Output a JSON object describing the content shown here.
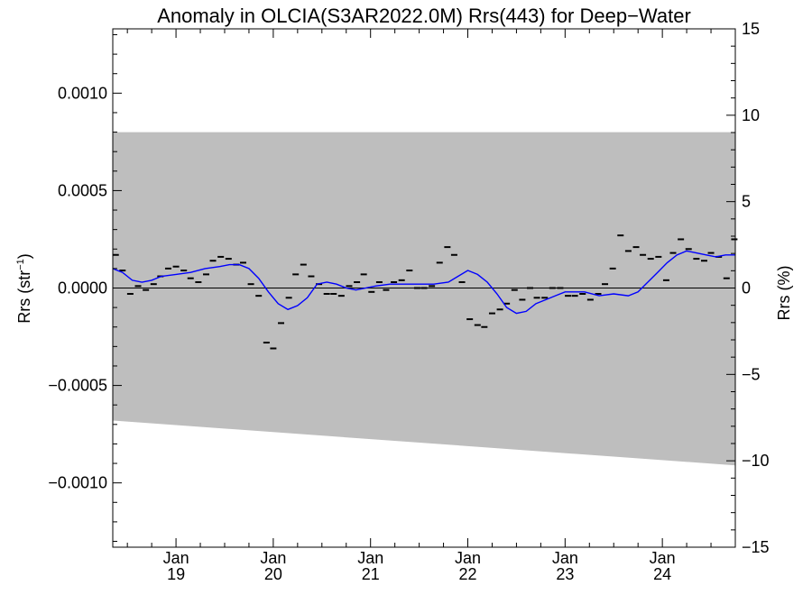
{
  "chart_data": {
    "type": "scatter",
    "title": "Anomaly in OLCIA(S3AR2022.0M) Rrs(443) for Deep−Water",
    "ylabel_left": "Rrs (str",
    "ylabel_left_sup": "−1",
    "ylabel_left_end": ")",
    "ylabel_right": "Rrs (%)",
    "xlim": [
      2018.35,
      2024.75
    ],
    "ylim_left": [
      -0.00133,
      0.00133
    ],
    "ylim_right": [
      -15,
      15
    ],
    "x_ticks": [
      {
        "x": 2019.0,
        "month": "Jan",
        "year": "19"
      },
      {
        "x": 2020.0,
        "month": "Jan",
        "year": "20"
      },
      {
        "x": 2021.0,
        "month": "Jan",
        "year": "21"
      },
      {
        "x": 2022.0,
        "month": "Jan",
        "year": "22"
      },
      {
        "x": 2023.0,
        "month": "Jan",
        "year": "23"
      },
      {
        "x": 2024.0,
        "month": "Jan",
        "year": "24"
      }
    ],
    "y_ticks_left": [
      {
        "v": 0.001,
        "label": "0.0010"
      },
      {
        "v": 0.0005,
        "label": "0.0005"
      },
      {
        "v": 0.0,
        "label": "0.0000"
      },
      {
        "v": -0.0005,
        "label": "−0.0005"
      },
      {
        "v": -0.001,
        "label": "−0.0010"
      }
    ],
    "y_ticks_right": [
      {
        "v": 15,
        "label": "15"
      },
      {
        "v": 10,
        "label": "10"
      },
      {
        "v": 5,
        "label": "5"
      },
      {
        "v": 0,
        "label": "0"
      },
      {
        "v": -5,
        "label": "−5"
      },
      {
        "v": -10,
        "label": "−10"
      },
      {
        "v": -15,
        "label": "−15"
      }
    ],
    "band": {
      "upper": [
        [
          2018.35,
          0.0008
        ],
        [
          2024.75,
          0.0008
        ]
      ],
      "lower": [
        [
          2018.35,
          -0.00068
        ],
        [
          2024.75,
          -0.00091
        ]
      ],
      "color": "#bebebe"
    },
    "zero_line": true,
    "points": {
      "color": "#000000",
      "x": [
        2018.38,
        2018.45,
        2018.53,
        2018.61,
        2018.69,
        2018.77,
        2018.84,
        2018.92,
        2019.0,
        2019.08,
        2019.15,
        2019.23,
        2019.31,
        2019.38,
        2019.46,
        2019.54,
        2019.62,
        2019.69,
        2019.77,
        2019.85,
        2019.93,
        2020.0,
        2020.08,
        2020.16,
        2020.23,
        2020.31,
        2020.39,
        2020.47,
        2020.55,
        2020.62,
        2020.7,
        2020.78,
        2020.86,
        2020.93,
        2021.01,
        2021.09,
        2021.16,
        2021.24,
        2021.32,
        2021.4,
        2021.48,
        2021.55,
        2021.63,
        2021.71,
        2021.79,
        2021.86,
        2021.94,
        2022.02,
        2022.1,
        2022.17,
        2022.25,
        2022.33,
        2022.4,
        2022.48,
        2022.56,
        2022.64,
        2022.71,
        2022.79,
        2022.87,
        2022.95,
        2023.03,
        2023.1,
        2023.18,
        2023.26,
        2023.34,
        2023.41,
        2023.49,
        2023.57,
        2023.65,
        2023.73,
        2023.8,
        2023.88,
        2023.96,
        2024.04,
        2024.11,
        2024.19,
        2024.27,
        2024.35,
        2024.43,
        2024.5,
        2024.58,
        2024.66,
        2024.74
      ],
      "y": [
        0.00017,
        9e-05,
        -3e-05,
        1e-05,
        -1e-05,
        2e-05,
        6e-05,
        0.0001,
        0.00011,
        9e-05,
        5e-05,
        3e-05,
        7e-05,
        0.00014,
        0.00016,
        0.00015,
        0.00012,
        0.00013,
        2e-05,
        -4e-05,
        -0.00028,
        -0.00031,
        -0.00018,
        -5e-05,
        7e-05,
        0.00012,
        6e-05,
        2e-05,
        -3e-05,
        -3e-05,
        -4e-05,
        1e-05,
        3e-05,
        7e-05,
        -2e-05,
        3e-05,
        -1e-05,
        3e-05,
        4e-05,
        9e-05,
        0.0,
        0.0,
        1e-05,
        0.00013,
        0.00021,
        0.00017,
        3e-05,
        -0.00016,
        -0.00019,
        -0.0002,
        -0.00013,
        -0.00011,
        -8e-05,
        -1e-05,
        -6e-05,
        0.0,
        -5e-05,
        -5e-05,
        0.0,
        0.0,
        -4e-05,
        -4e-05,
        -3e-05,
        -6e-05,
        -3e-05,
        2e-05,
        0.0001,
        0.00027,
        0.00019,
        0.00021,
        0.00017,
        0.00015,
        0.00016,
        4e-05,
        0.00018,
        0.00025,
        0.0002,
        0.00015,
        0.00014,
        0.00018,
        0.00016,
        5e-05,
        0.00025
      ]
    },
    "trend": {
      "color": "#0000ff",
      "x": [
        2018.35,
        2018.45,
        2018.55,
        2018.65,
        2018.75,
        2018.85,
        2019.0,
        2019.15,
        2019.3,
        2019.45,
        2019.55,
        2019.65,
        2019.75,
        2019.85,
        2019.95,
        2020.05,
        2020.15,
        2020.25,
        2020.35,
        2020.45,
        2020.55,
        2020.65,
        2020.75,
        2020.85,
        2020.95,
        2021.05,
        2021.2,
        2021.35,
        2021.5,
        2021.65,
        2021.8,
        2021.9,
        2022.0,
        2022.1,
        2022.2,
        2022.3,
        2022.4,
        2022.5,
        2022.6,
        2022.7,
        2022.8,
        2022.9,
        2023.0,
        2023.1,
        2023.2,
        2023.35,
        2023.5,
        2023.65,
        2023.75,
        2023.85,
        2023.95,
        2024.05,
        2024.15,
        2024.25,
        2024.35,
        2024.45,
        2024.55,
        2024.65,
        2024.75
      ],
      "y": [
        0.0001,
        8e-05,
        4e-05,
        3e-05,
        4e-05,
        6e-05,
        7e-05,
        8e-05,
        0.0001,
        0.00011,
        0.00012,
        0.00012,
        0.0001,
        5e-05,
        -2e-05,
        -8e-05,
        -0.00011,
        -9e-05,
        -5e-05,
        2e-05,
        3e-05,
        2e-05,
        0.0,
        -1e-05,
        0.0,
        1e-05,
        2e-05,
        2e-05,
        2e-05,
        2e-05,
        3e-05,
        6e-05,
        9e-05,
        7e-05,
        3e-05,
        -3e-05,
        -0.0001,
        -0.00013,
        -0.00012,
        -8e-05,
        -6e-05,
        -4e-05,
        -2e-05,
        -2e-05,
        -2e-05,
        -4e-05,
        -3e-05,
        -4e-05,
        -2e-05,
        3e-05,
        8e-05,
        0.00013,
        0.00017,
        0.00019,
        0.00018,
        0.00017,
        0.00016,
        0.00017,
        0.00017
      ]
    }
  }
}
